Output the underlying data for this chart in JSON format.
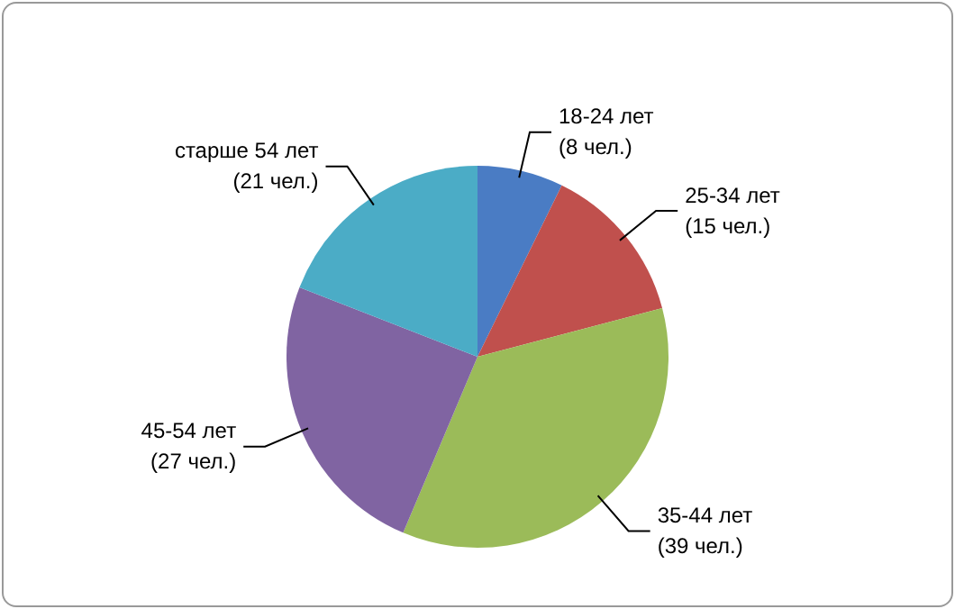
{
  "chart_data": {
    "type": "pie",
    "categories": [
      "18-24 лет",
      "25-34 лет",
      "35-44 лет",
      "45-54 лет",
      "старше 54 лет"
    ],
    "values": [
      8,
      15,
      39,
      27,
      21
    ],
    "colors": [
      "#4a7cc4",
      "#c0504d",
      "#9bbb59",
      "#8064a2",
      "#4bacc6"
    ],
    "value_labels": [
      "(8 чел.)",
      "(15 чел.)",
      "(39 чел.)",
      "(27 чел.)",
      "(21 чел.)"
    ],
    "legend": false
  }
}
